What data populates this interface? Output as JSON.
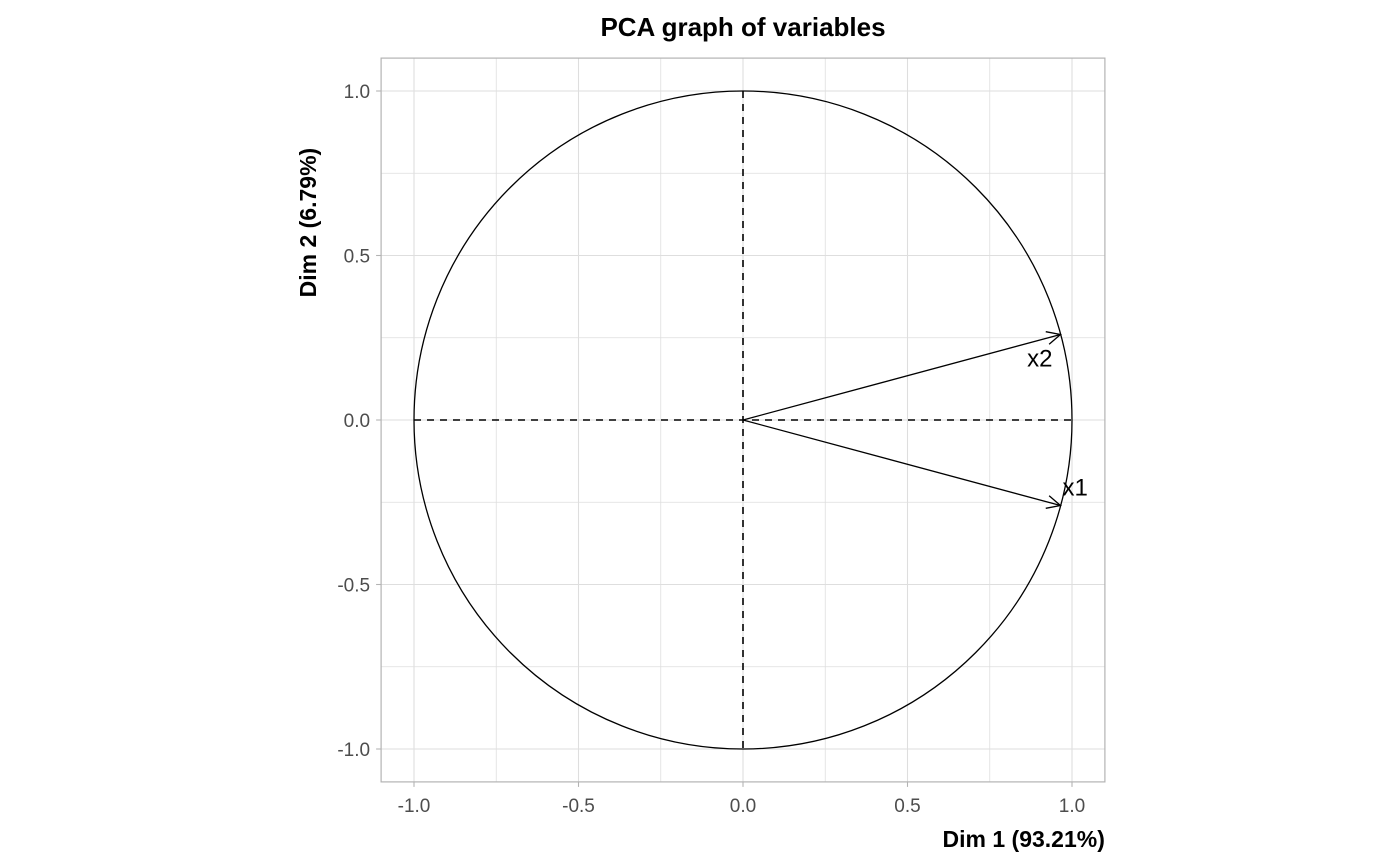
{
  "chart_data": {
    "type": "scatter",
    "title": "PCA graph of variables",
    "xlabel": "Dim 1 (93.21%)",
    "ylabel": "Dim 2 (6.79%)",
    "xlim": [
      -1.1,
      1.1
    ],
    "ylim": [
      -1.1,
      1.1
    ],
    "xticks": [
      -1.0,
      -0.5,
      0.0,
      0.5,
      1.0
    ],
    "yticks": [
      -1.0,
      -0.5,
      0.0,
      0.5,
      1.0
    ],
    "xtick_labels": [
      "-1.0",
      "-0.5",
      "0.0",
      "0.5",
      "1.0"
    ],
    "ytick_labels": [
      "-1.0",
      "-0.5",
      "0.0",
      "0.5",
      "1.0"
    ],
    "grid": true,
    "correlation_circle_radius": 1.0,
    "variables": [
      {
        "name": "x1",
        "x": 0.965,
        "y": -0.26
      },
      {
        "name": "x2",
        "x": 0.965,
        "y": 0.26
      }
    ],
    "colors": {
      "panel_border": "#b3b3b3",
      "grid": "#dedede",
      "lines": "#000000",
      "tick_text": "#4d4d4d"
    }
  }
}
